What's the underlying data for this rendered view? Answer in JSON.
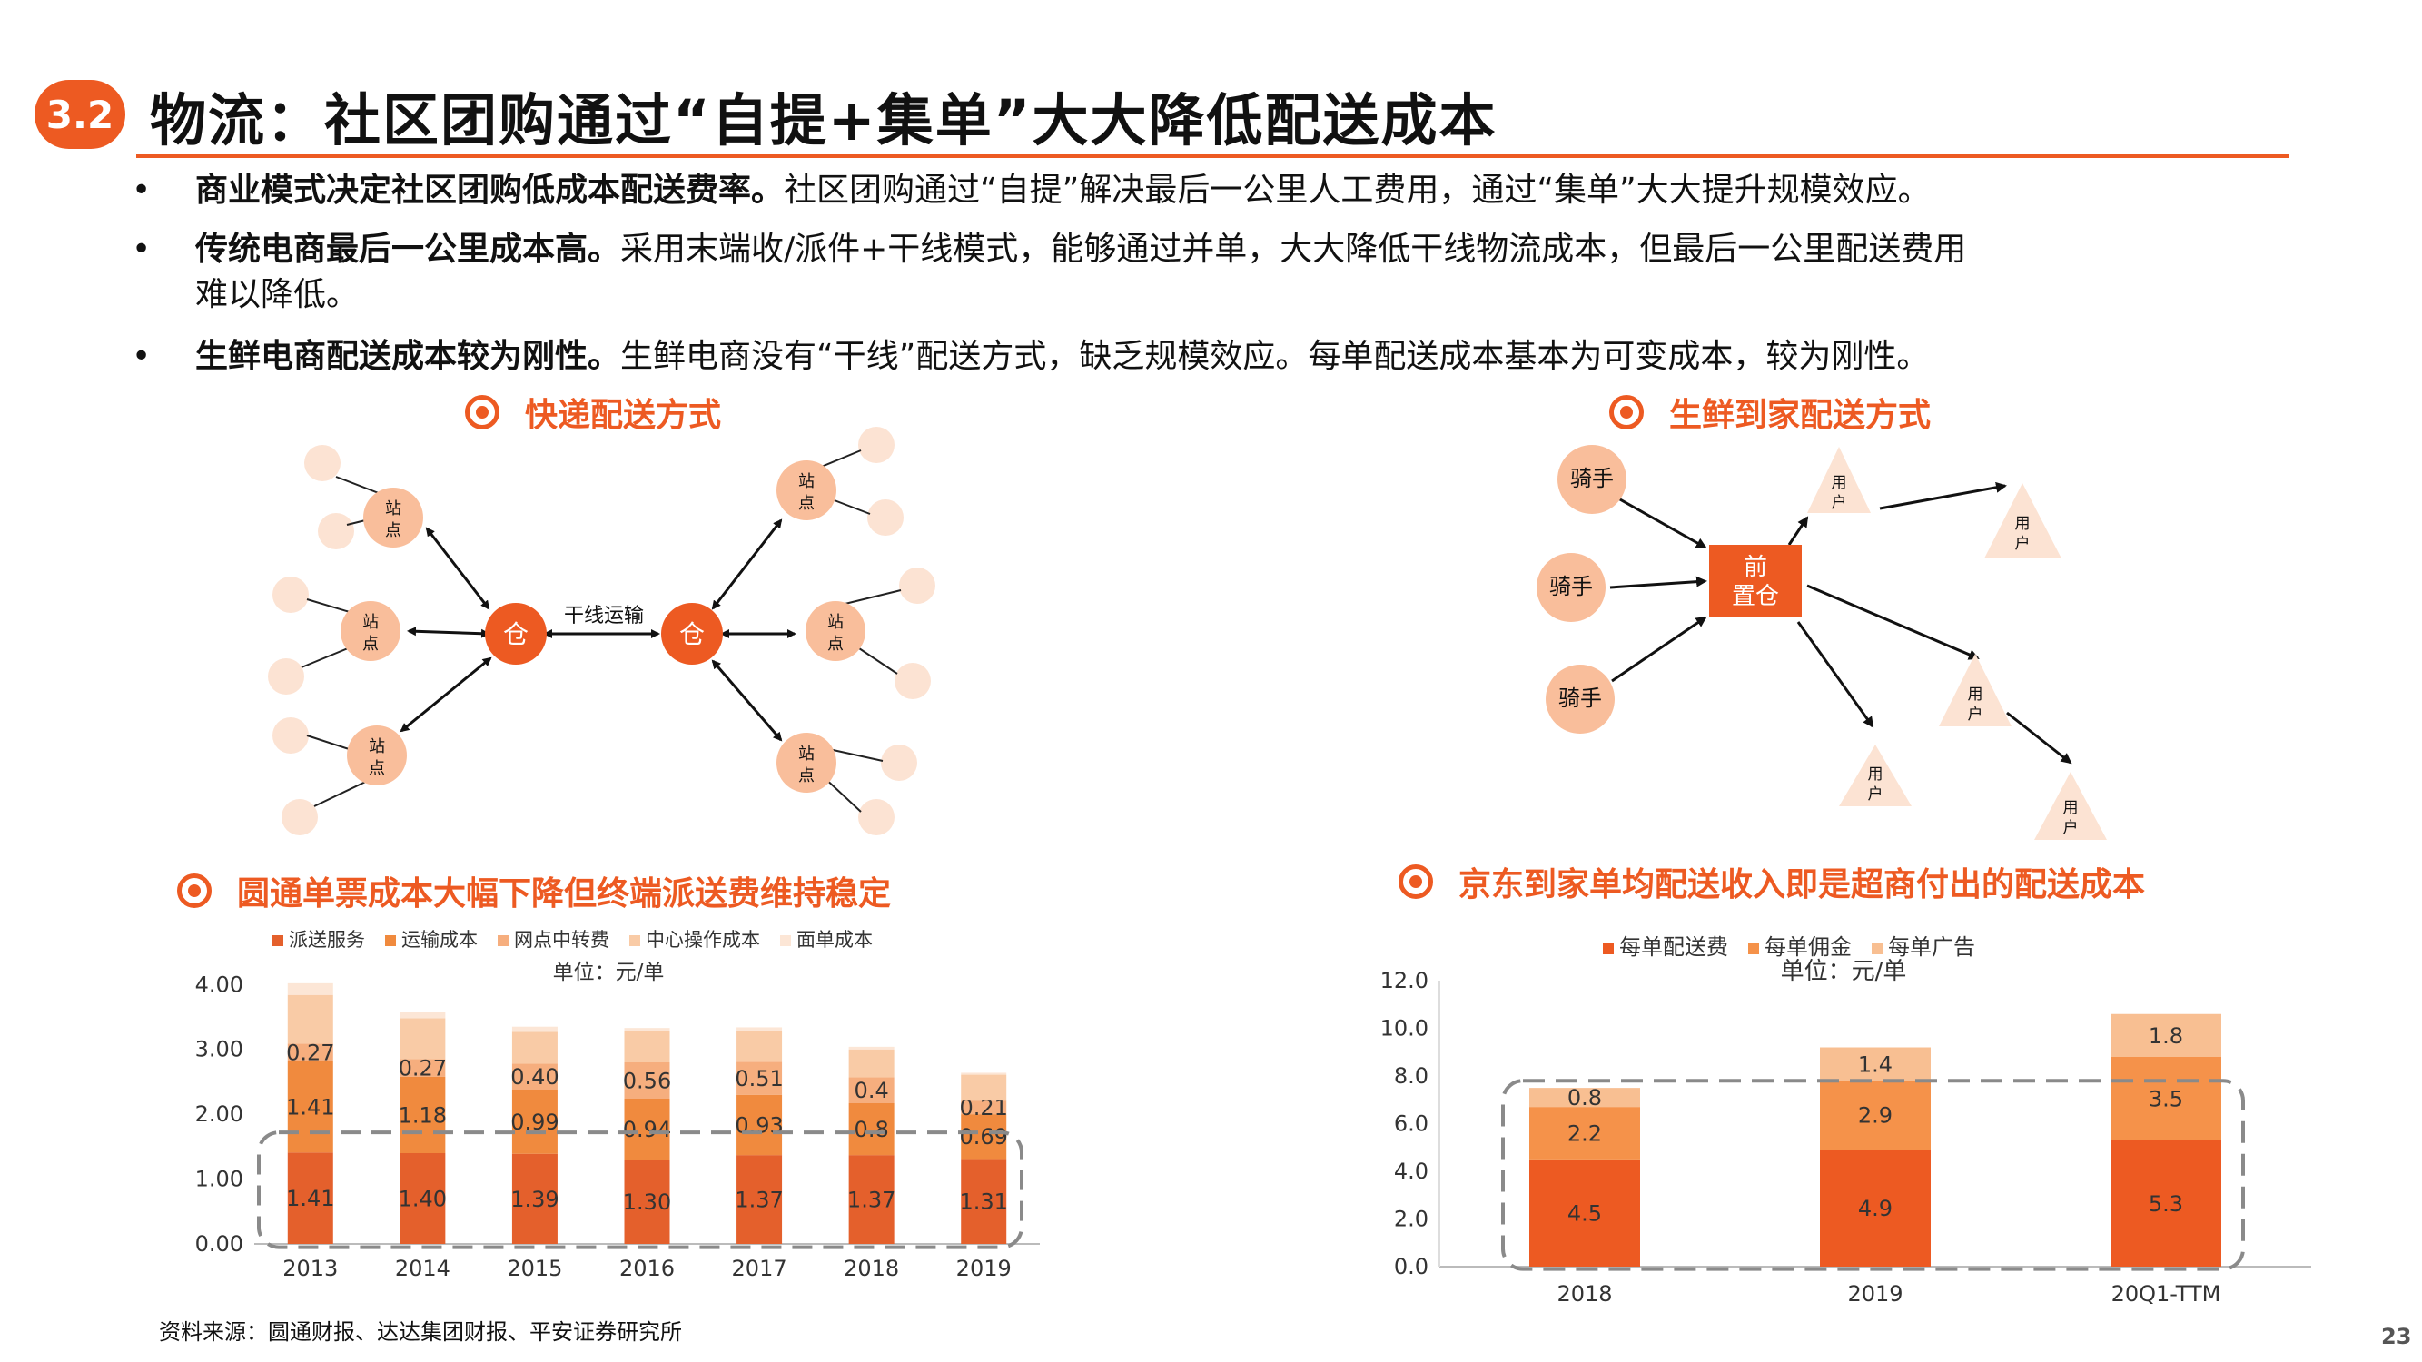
{
  "header": {
    "section_number": "3.2",
    "title": "物流：社区团购通过“自提+集单”大大降低配送成本"
  },
  "bullets": [
    {
      "marker": "•",
      "bold": "商业模式决定社区团购低成本配送费率。",
      "text": "社区团购通过“自提”解决最后一公里人工费用，通过“集单”大大提升规模效应。"
    },
    {
      "marker": "•",
      "bold": "传统电商最后一公里成本高。",
      "text": "采用末端收/派件+干线模式，能够通过并单，大大降低干线物流成本，但最后一公里配送费用",
      "text2": "难以降低。"
    },
    {
      "marker": "•",
      "bold": "生鲜电商配送成本较为刚性。",
      "text": "生鲜电商没有“干线”配送方式，缺乏规模效应。每单配送成本基本为可变成本，较为刚性。"
    }
  ],
  "express_diagram": {
    "heading": "快递配送方式",
    "station_label": "站点",
    "warehouse_label": "仓",
    "trunk_label": "干线运输"
  },
  "fresh_diagram": {
    "heading": "生鲜到家配送方式",
    "rider_label": "骑手",
    "front_warehouse_label": "前置仓",
    "user_label": "用户"
  },
  "colors": {
    "accent": "#ED5A22",
    "dark": "#E4602C",
    "mid": "#F08A3E",
    "light": "#F6AE7E",
    "lighter": "#F9CBA6",
    "lightest": "#FCE6D6"
  },
  "chart_left": {
    "heading": "圆通单票成本大幅下降但终端派送费维持稳定",
    "chart_data": {
      "type": "bar",
      "stacked": true,
      "unit": "单位：元/单",
      "categories": [
        "2013",
        "2014",
        "2015",
        "2016",
        "2017",
        "2018",
        "2019"
      ],
      "yticks": [
        "0.00",
        "1.00",
        "2.00",
        "3.00",
        "4.00"
      ],
      "ylim": [
        0,
        4.2
      ],
      "series": [
        {
          "name": "派送服务",
          "color": "#E4602C",
          "values": [
            1.41,
            1.4,
            1.39,
            1.3,
            1.37,
            1.37,
            1.31
          ]
        },
        {
          "name": "运输成本",
          "color": "#F08A3E",
          "values": [
            1.41,
            1.18,
            0.99,
            0.94,
            0.93,
            0.8,
            0.69
          ]
        },
        {
          "name": "网点中转费",
          "color": "#F6AE7E",
          "values": [
            0.27,
            0.27,
            0.4,
            0.56,
            0.51,
            0.4,
            0.21
          ]
        },
        {
          "name": "中心操作成本",
          "color": "#F9CBA6",
          "values": [
            0.75,
            0.63,
            0.49,
            0.48,
            0.48,
            0.43,
            0.4
          ]
        },
        {
          "name": "面单成本",
          "color": "#FCE6D6",
          "values": [
            0.18,
            0.1,
            0.08,
            0.05,
            0.05,
            0.04,
            0.03
          ]
        }
      ],
      "labels": [
        [
          "1.41",
          "1.40",
          "1.39",
          "1.30",
          "1.37",
          "1.37",
          "1.31"
        ],
        [
          "1.41",
          "1.18",
          "0.99",
          "0.94",
          "0.93",
          "0.8",
          "0.69"
        ],
        [
          "0.27",
          "0.27",
          "0.40",
          "0.56",
          "0.51",
          "0.4",
          "0.21"
        ]
      ]
    }
  },
  "chart_right": {
    "heading": "京东到家单均配送收入即是超商付出的配送成本",
    "chart_data": {
      "type": "bar",
      "stacked": true,
      "unit": "单位：元/单",
      "categories": [
        "2018",
        "2019",
        "20Q1-TTM"
      ],
      "yticks": [
        "0.0",
        "2.0",
        "4.0",
        "6.0",
        "8.0",
        "10.0",
        "12.0"
      ],
      "ylim": [
        0,
        12
      ],
      "series": [
        {
          "name": "每单配送费",
          "color": "#ED5A22",
          "values": [
            4.5,
            4.9,
            5.3
          ]
        },
        {
          "name": "每单佣金",
          "color": "#F5924A",
          "values": [
            2.2,
            2.9,
            3.5
          ]
        },
        {
          "name": "每单广告",
          "color": "#F8BF92",
          "values": [
            0.8,
            1.4,
            1.8
          ]
        }
      ],
      "labels": [
        [
          "4.5",
          "4.9",
          "5.3"
        ],
        [
          "2.2",
          "2.9",
          "3.5"
        ],
        [
          "0.8",
          "1.4",
          "1.8"
        ]
      ]
    }
  },
  "footer": {
    "source": "资料来源：圆通财报、达达集团财报、平安证券研究所",
    "page": "23"
  }
}
